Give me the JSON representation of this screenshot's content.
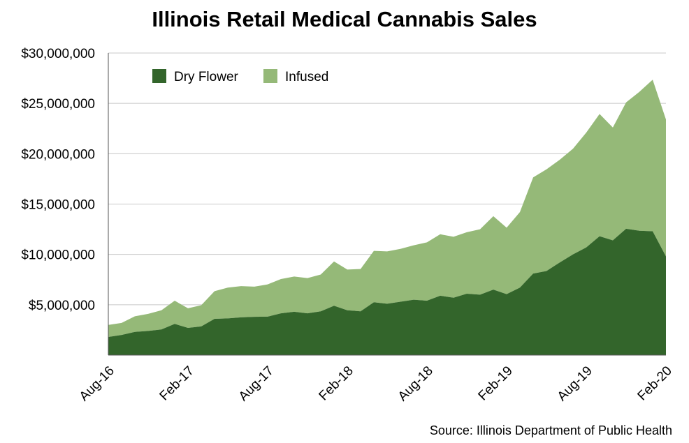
{
  "chart_data": {
    "type": "area",
    "stacked": true,
    "title": "Illinois Retail Medical Cannabis Sales",
    "source": "Source: Illinois Department of Public Health",
    "xlabel": "",
    "ylabel": "",
    "ylim": [
      0,
      30000000
    ],
    "yticks": [
      {
        "value": 5000000,
        "label": "$5,000,000"
      },
      {
        "value": 10000000,
        "label": "$10,000,000"
      },
      {
        "value": 15000000,
        "label": "$15,000,000"
      },
      {
        "value": 20000000,
        "label": "$20,000,000"
      },
      {
        "value": 25000000,
        "label": "$25,000,000"
      },
      {
        "value": 30000000,
        "label": "$30,000,000"
      }
    ],
    "xticks": [
      {
        "index": 0,
        "label": "Aug-16"
      },
      {
        "index": 6,
        "label": "Feb-17"
      },
      {
        "index": 12,
        "label": "Aug-17"
      },
      {
        "index": 18,
        "label": "Feb-18"
      },
      {
        "index": 24,
        "label": "Aug-18"
      },
      {
        "index": 30,
        "label": "Feb-19"
      },
      {
        "index": 36,
        "label": "Aug-19"
      },
      {
        "index": 42,
        "label": "Feb-20"
      }
    ],
    "grid": true,
    "legend_position": "top-left",
    "x": [
      "Aug-16",
      "Sep-16",
      "Oct-16",
      "Nov-16",
      "Dec-16",
      "Jan-17",
      "Feb-17",
      "Mar-17",
      "Apr-17",
      "May-17",
      "Jun-17",
      "Jul-17",
      "Aug-17",
      "Sep-17",
      "Oct-17",
      "Nov-17",
      "Dec-17",
      "Jan-18",
      "Feb-18",
      "Mar-18",
      "Apr-18",
      "May-18",
      "Jun-18",
      "Jul-18",
      "Aug-18",
      "Sep-18",
      "Oct-18",
      "Nov-18",
      "Dec-18",
      "Jan-19",
      "Feb-19",
      "Mar-19",
      "Apr-19",
      "May-19",
      "Jun-19",
      "Jul-19",
      "Aug-19",
      "Sep-19",
      "Oct-19",
      "Nov-19",
      "Dec-19",
      "Jan-20",
      "Feb-20"
    ],
    "series": [
      {
        "name": "Dry Flower",
        "color": "#33652b",
        "values": [
          1800000,
          2000000,
          2300000,
          2400000,
          2550000,
          3100000,
          2700000,
          2850000,
          3600000,
          3650000,
          3750000,
          3800000,
          3820000,
          4150000,
          4300000,
          4150000,
          4350000,
          4900000,
          4450000,
          4350000,
          5250000,
          5100000,
          5300000,
          5500000,
          5400000,
          5900000,
          5700000,
          6100000,
          6000000,
          6500000,
          6050000,
          6700000,
          8100000,
          8350000,
          9200000,
          10000000,
          10700000,
          11800000,
          11400000,
          12550000,
          12350000,
          12300000,
          9800000
        ]
      },
      {
        "name": "Infused",
        "color": "#95b978",
        "values": [
          1200000,
          1200000,
          1550000,
          1700000,
          1900000,
          2300000,
          1950000,
          2100000,
          2750000,
          3050000,
          3100000,
          3000000,
          3200000,
          3400000,
          3500000,
          3500000,
          3650000,
          4400000,
          4050000,
          4200000,
          5100000,
          5200000,
          5250000,
          5400000,
          5800000,
          6100000,
          6050000,
          6100000,
          6500000,
          7300000,
          6600000,
          7500000,
          9550000,
          10100000,
          10200000,
          10500000,
          11400000,
          12150000,
          11200000,
          12550000,
          13800000,
          15050000,
          13600000
        ]
      }
    ]
  }
}
